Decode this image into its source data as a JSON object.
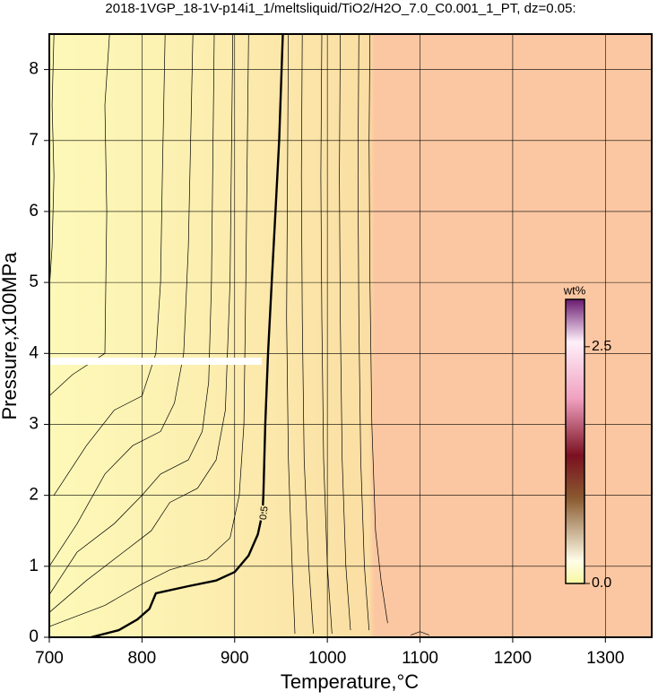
{
  "chart_data": {
    "type": "contour",
    "title": "2018-1VGP_18-1V-p14i1_1/meltsliquid/TiO2/H2O_7.0_C0.001_1_PT, dz=0.05:",
    "xlabel": "Temperature,°C",
    "ylabel": "Pressure,x100MPa",
    "xlim": [
      700,
      1350
    ],
    "ylim": [
      0,
      8.5
    ],
    "xticks": [
      700,
      800,
      900,
      1000,
      1100,
      1200,
      1300
    ],
    "yticks": [
      0,
      1,
      2,
      3,
      4,
      5,
      6,
      7,
      8
    ],
    "grid": true,
    "contours": [
      {
        "level": 0.5,
        "x": [
          745,
          775,
          795,
          808,
          815,
          850,
          880,
          900,
          915,
          925,
          930,
          931,
          933,
          936,
          940,
          944,
          948,
          952
        ],
        "y": [
          0,
          0.1,
          0.25,
          0.4,
          0.62,
          0.72,
          0.8,
          0.92,
          1.15,
          1.45,
          1.75,
          2.0,
          3.0,
          4.0,
          5.0,
          6.0,
          7.0,
          8.5
        ]
      },
      {
        "x": [
          1065,
          1058,
          1052,
          1048,
          1046,
          1045,
          1046
        ],
        "y": [
          0.2,
          0.8,
          1.5,
          3.0,
          5.0,
          7.0,
          8.5
        ]
      },
      {
        "x": [
          1045,
          1040,
          1036,
          1034,
          1033,
          1034
        ],
        "y": [
          0.1,
          1.0,
          2.5,
          4.5,
          6.5,
          8.5
        ]
      },
      {
        "x": [
          1025,
          1020,
          1016,
          1014,
          1013,
          1014
        ],
        "y": [
          0.1,
          1.0,
          2.5,
          4.5,
          6.5,
          8.5
        ]
      },
      {
        "x": [
          1005,
          1000,
          996,
          994,
          993,
          994
        ],
        "y": [
          0.05,
          1.0,
          2.5,
          4.5,
          6.5,
          8.5
        ]
      },
      {
        "x": [
          985,
          980,
          975,
          973,
          972,
          973
        ],
        "y": [
          0.05,
          1.0,
          2.5,
          4.5,
          6.5,
          8.5
        ]
      },
      {
        "x": [
          965,
          962,
          958,
          956,
          957,
          958
        ],
        "y": [
          0.05,
          1.0,
          2.5,
          4.5,
          6.5,
          8.5
        ]
      },
      {
        "x": [
          700,
          760,
          800,
          830,
          870,
          895,
          905,
          910,
          912,
          915
        ],
        "y": [
          0.15,
          0.45,
          0.75,
          0.95,
          1.1,
          1.4,
          2.0,
          3.0,
          5.0,
          8.5
        ]
      },
      {
        "x": [
          700,
          740,
          780,
          810,
          830,
          860,
          880,
          890,
          895,
          898
        ],
        "y": [
          0.35,
          0.8,
          1.2,
          1.5,
          1.9,
          2.1,
          2.5,
          3.2,
          5.0,
          8.5
        ]
      },
      {
        "x": [
          700,
          730,
          770,
          800,
          820,
          850,
          865,
          872,
          875,
          878
        ],
        "y": [
          0.6,
          1.2,
          1.6,
          2.0,
          2.3,
          2.5,
          2.9,
          3.6,
          5.0,
          8.5
        ]
      },
      {
        "x": [
          700,
          730,
          760,
          790,
          820,
          835,
          845,
          850,
          855
        ],
        "y": [
          1.0,
          1.6,
          2.3,
          2.7,
          2.9,
          3.3,
          4.0,
          5.5,
          8.5
        ]
      },
      {
        "x": [
          705,
          740,
          770,
          800,
          815,
          820,
          822,
          825
        ],
        "y": [
          2.0,
          2.7,
          3.2,
          3.4,
          4.0,
          5.0,
          6.5,
          8.5
        ]
      },
      {
        "x": [
          700,
          725,
          760,
          762,
          760,
          765
        ],
        "y": [
          3.4,
          3.7,
          4.0,
          6.0,
          7.5,
          8.5
        ]
      },
      {
        "x": [
          700,
          703,
          705,
          703,
          705
        ],
        "y": [
          4.9,
          5.5,
          6.5,
          7.5,
          8.5
        ]
      },
      {
        "x": [
          1090,
          1100,
          1110
        ],
        "y": [
          0.03,
          0.08,
          0.03
        ]
      }
    ],
    "colorbar": {
      "label": "wt%",
      "clim": [
        0,
        3.0
      ],
      "ticks": [
        {
          "value": 0,
          "label": "0.0"
        },
        2.5
      ]
    }
  }
}
